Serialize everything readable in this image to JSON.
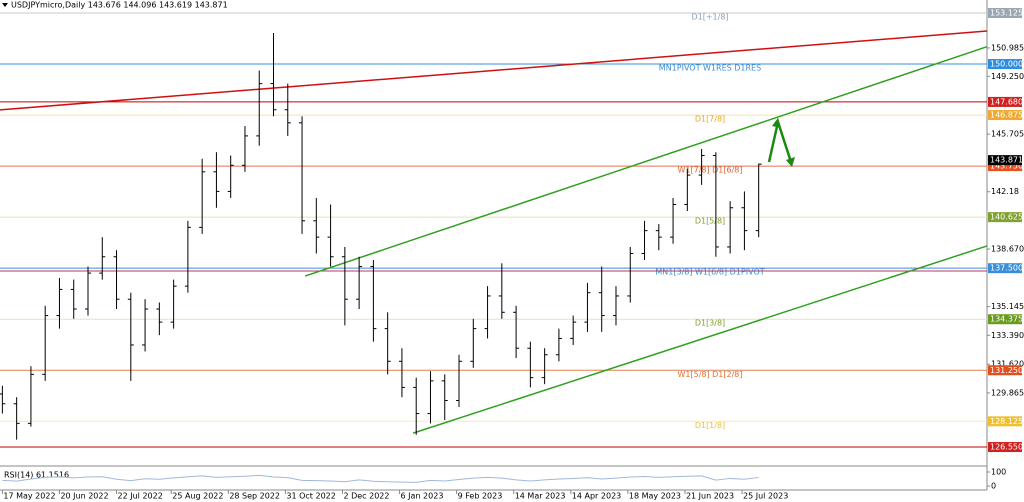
{
  "chart_data": {
    "type": "ohlc",
    "title": "USDJPYmicro,Daily  143.676 144.096 143.619 143.871",
    "x": [
      0,
      6,
      12,
      18,
      24,
      30,
      36,
      42,
      48,
      54,
      60,
      66,
      72,
      78,
      84,
      90,
      96,
      102,
      108,
      114,
      120,
      126,
      132,
      138,
      144,
      150,
      156,
      162,
      168,
      174,
      180,
      186,
      192,
      198,
      204,
      210,
      216,
      222,
      228,
      234,
      240,
      246,
      252,
      258,
      264,
      270,
      276,
      282,
      288,
      294,
      300,
      306,
      312,
      318
    ],
    "open": [
      129.8,
      129.2,
      128.0,
      131.0,
      134.6,
      136.2,
      135.0,
      137.2,
      138.2,
      135.6,
      132.8,
      135.0,
      134.2,
      136.4,
      140.0,
      143.4,
      142.2,
      143.8,
      145.6,
      148.8,
      147.2,
      146.4,
      140.4,
      139.4,
      138.2,
      135.6,
      137.6,
      133.8,
      131.8,
      130.2,
      128.6,
      130.6,
      129.4,
      131.8,
      133.8,
      135.8,
      134.8,
      132.6,
      130.8,
      132.2,
      133.2,
      134.2,
      136.0,
      134.6,
      135.8,
      138.4,
      139.8,
      139.4,
      141.4,
      143.2,
      144.4,
      138.8,
      141.2,
      139.8
    ],
    "high": [
      130.3,
      129.6,
      131.5,
      135.2,
      136.9,
      136.8,
      137.6,
      139.4,
      138.6,
      136.0,
      135.6,
      135.4,
      136.8,
      140.4,
      144.2,
      144.6,
      144.4,
      146.2,
      149.6,
      151.9,
      148.8,
      146.8,
      141.8,
      141.4,
      138.8,
      138.2,
      138.0,
      134.8,
      132.6,
      130.8,
      131.2,
      131.0,
      132.2,
      134.4,
      136.4,
      137.8,
      135.2,
      133.0,
      132.6,
      133.8,
      134.6,
      136.6,
      137.6,
      136.4,
      138.8,
      140.4,
      140.2,
      141.8,
      143.6,
      144.8,
      144.6,
      141.6,
      142.2,
      143.9
    ],
    "low": [
      128.6,
      127.0,
      127.8,
      130.6,
      133.8,
      134.4,
      134.6,
      136.8,
      135.0,
      130.6,
      132.4,
      133.4,
      133.8,
      136.0,
      139.6,
      141.2,
      141.8,
      143.4,
      145.0,
      146.8,
      145.6,
      139.6,
      138.4,
      137.6,
      134.0,
      135.0,
      133.0,
      131.0,
      129.6,
      127.3,
      128.0,
      128.2,
      129.0,
      131.4,
      133.2,
      134.4,
      132.0,
      130.2,
      130.4,
      131.8,
      132.8,
      133.6,
      133.6,
      134.0,
      135.4,
      138.0,
      138.6,
      139.0,
      141.0,
      142.6,
      138.2,
      138.4,
      138.6,
      139.4
    ],
    "close": [
      129.2,
      128.0,
      131.0,
      134.6,
      136.2,
      135.0,
      137.2,
      138.2,
      135.6,
      132.8,
      135.0,
      134.2,
      136.4,
      140.0,
      143.4,
      142.2,
      143.8,
      145.6,
      148.8,
      147.2,
      146.4,
      140.4,
      139.4,
      138.2,
      135.6,
      137.6,
      133.8,
      131.8,
      130.2,
      128.6,
      130.6,
      129.4,
      131.8,
      133.8,
      135.8,
      134.8,
      132.6,
      130.8,
      132.2,
      133.2,
      134.2,
      136.0,
      134.6,
      135.8,
      138.4,
      139.8,
      139.4,
      141.4,
      143.2,
      144.4,
      138.8,
      141.2,
      139.8,
      143.871
    ],
    "color": "#000000",
    "xlim": [
      -1,
      414
    ],
    "ylim": [
      125.45,
      153.43
    ],
    "xticks": [
      {
        "value": 0,
        "label": "17 May 2022"
      },
      {
        "value": 24,
        "label": "20 Jun 2022"
      },
      {
        "value": 48,
        "label": "22 Jul 2022"
      },
      {
        "value": 71,
        "label": "25 Aug 2022"
      },
      {
        "value": 95,
        "label": "28 Sep 2022"
      },
      {
        "value": 119,
        "label": "31 Oct 2022"
      },
      {
        "value": 143,
        "label": "2 Dec 2022"
      },
      {
        "value": 167,
        "label": "6 Jan 2023"
      },
      {
        "value": 191,
        "label": "9 Feb 2023"
      },
      {
        "value": 215,
        "label": "14 Mar 2023"
      },
      {
        "value": 239,
        "label": "14 Apr 2023"
      },
      {
        "value": 263,
        "label": "18 May 2023"
      },
      {
        "value": 287,
        "label": "21 Jun 2023"
      },
      {
        "value": 311,
        "label": "25 Jul 2023"
      }
    ],
    "yticks": [
      150.985,
      {
        "value": 149.25,
        "label": "149.250"
      },
      145.705,
      142.18,
      {
        "value": 138.67,
        "label": "138.670"
      },
      135.145,
      {
        "value": 133.39,
        "label": "133.390"
      },
      {
        "value": 131.62,
        "label": "131.620"
      },
      129.865
    ],
    "levels": [
      {
        "label": "D1[+1/8]",
        "value": 153.125,
        "line_color": "#c8c8c8",
        "text_color": "#8aa0b8",
        "box_color": "#9aa6b2"
      },
      {
        "label": "MN1PIVOT W1RES D1RES",
        "value": 150,
        "value_label": "150.000",
        "line_color": "#3a8fd8",
        "text_color": "#3a8fd8",
        "box_color": "#2e8de0"
      },
      {
        "value": 147.68,
        "value_label": "147.680",
        "line_color": "#c00000",
        "box_color": "#d02020"
      },
      {
        "label": "D1[7/8]",
        "value": 146.875,
        "line_color": "#f5e2a8",
        "text_color": "#e8a820",
        "box_color": "#f0a830"
      },
      {
        "label": "W1[7/8] D1[6/8]",
        "value": 143.75,
        "value_label": "143.750",
        "line_color": "#e07050",
        "text_color": "#e06030",
        "box_color": "#e85020"
      },
      {
        "label": "D1[5/8]",
        "value": 140.625,
        "line_color": "#dfe6bc",
        "text_color": "#80a030",
        "box_color": "#80a030"
      },
      {
        "label": "MN1[3/8] W1[6/8] D1PIVOT",
        "value": 137.5,
        "value_label": "137.500",
        "line_color": "#3a8fd8",
        "text_color": "#3a8fd8",
        "box_color": "#3a8fd8"
      },
      {
        "value": 137.33,
        "line_color": "#c0306a"
      },
      {
        "label": "D1[3/8]",
        "value": 134.375,
        "line_color": "#dfe6c4",
        "text_color": "#80a030",
        "box_color": "#6a9a20"
      },
      {
        "label": "W1[5/8] D1[2/8]",
        "value": 131.25,
        "value_label": "131.250",
        "line_color": "#e08050",
        "text_color": "#e07030",
        "box_color": "#e05020"
      },
      {
        "label": "D1[1/8]",
        "value": 128.125,
        "line_color": "#f5ebb8",
        "text_color": "#e8c040",
        "box_color": "#f0c030"
      },
      {
        "value": 126.55,
        "value_label": "126.550",
        "line_color": "#c00000",
        "box_color": "#d02020"
      }
    ],
    "current_price": 143.871,
    "trend_lines": [
      {
        "color": "#d01010",
        "x": [
          -1,
          414
        ],
        "y": [
          147.19,
          152.02
        ]
      },
      {
        "color": "#30a020",
        "x": [
          127.3,
          414
        ],
        "y": [
          137.02,
          151.06
        ]
      },
      {
        "color": "#30a020",
        "x": [
          172.7,
          414
        ],
        "y": [
          127.4,
          138.86
        ]
      }
    ],
    "rsi": {
      "label": "RSI(14) 61.1516",
      "ylim": [
        0,
        100
      ],
      "yticks": [
        0,
        100
      ],
      "color": "#a0b8d8",
      "values": [
        40,
        35,
        50,
        62,
        66,
        58,
        64,
        66,
        48,
        38,
        52,
        48,
        58,
        66,
        72,
        62,
        66,
        70,
        76,
        64,
        60,
        40,
        38,
        36,
        30,
        44,
        34,
        30,
        28,
        26,
        40,
        36,
        46,
        56,
        62,
        56,
        44,
        36,
        44,
        50,
        54,
        60,
        50,
        56,
        64,
        68,
        62,
        66,
        70,
        72,
        42,
        54,
        48,
        61.1516
      ]
    }
  }
}
